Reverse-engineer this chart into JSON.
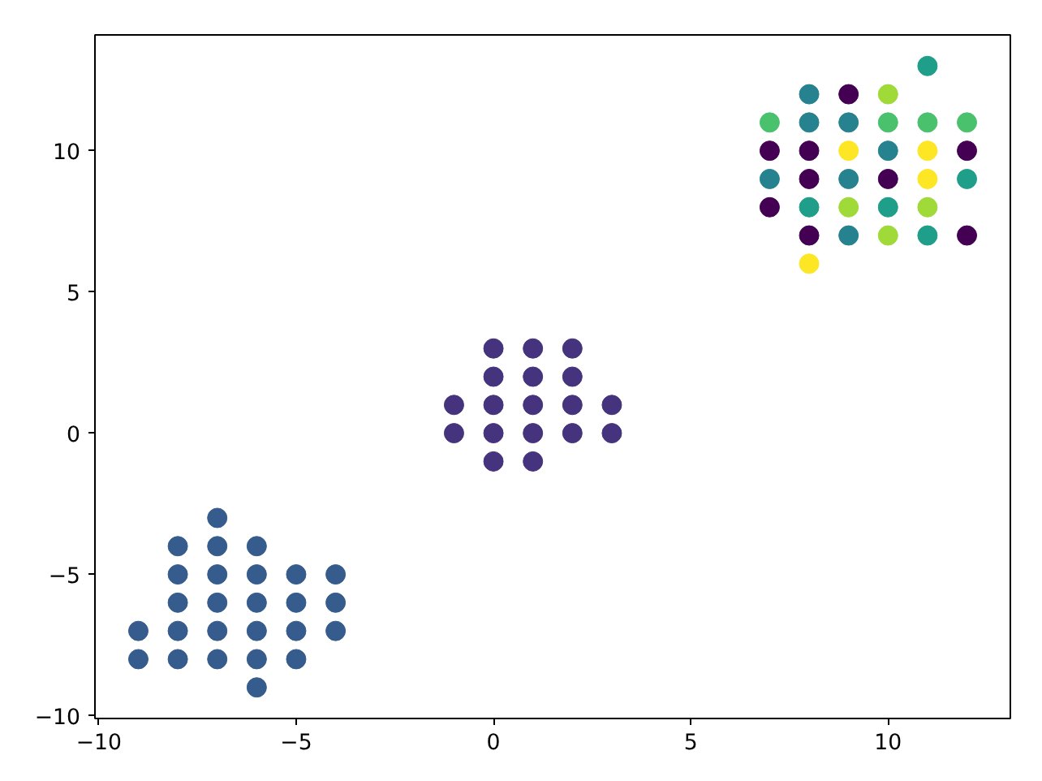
{
  "chart_data": {
    "type": "scatter",
    "marker": "circle",
    "grid": false,
    "xlim": [
      -10.1,
      13.1
    ],
    "ylim": [
      -10.1,
      14.1
    ],
    "xticks": [
      {
        "value": -10,
        "label": "−10"
      },
      {
        "value": -5,
        "label": "−5"
      },
      0,
      5,
      10
    ],
    "yticks": [
      {
        "value": -10,
        "label": "−10"
      },
      {
        "value": -5,
        "label": "−5"
      },
      0,
      5,
      10
    ],
    "series": [
      {
        "x": [
          11,
          8,
          9,
          10,
          7,
          8,
          9,
          10,
          11,
          12,
          7,
          8,
          9,
          10,
          11,
          12,
          7,
          8,
          9,
          10,
          11,
          12,
          7,
          8,
          9,
          10,
          11,
          8,
          9,
          10,
          11,
          12,
          8
        ],
        "values": [
          13,
          12,
          12,
          12,
          11,
          11,
          11,
          11,
          11,
          11,
          10,
          10,
          10,
          10,
          10,
          10,
          9,
          9,
          9,
          9,
          9,
          9,
          8,
          8,
          8,
          8,
          8,
          7,
          7,
          7,
          7,
          7,
          6
        ],
        "colors": [
          "#1f9e89",
          "#26828e",
          "#440154",
          "#a0da39",
          "#4ac16d",
          "#26828e",
          "#26828e",
          "#4ac16d",
          "#4ac16d",
          "#4ac16d",
          "#440154",
          "#440154",
          "#fde725",
          "#26828e",
          "#fde725",
          "#440154",
          "#26828e",
          "#440154",
          "#26828e",
          "#440154",
          "#fde725",
          "#1f9e89",
          "#440154",
          "#1f9e89",
          "#a0da39",
          "#1f9e89",
          "#a0da39",
          "#440154",
          "#26828e",
          "#a0da39",
          "#1f9e89",
          "#440154",
          "#fde725"
        ]
      },
      {
        "x": [
          0,
          1,
          2,
          0,
          1,
          2,
          -1,
          0,
          1,
          2,
          3,
          -1,
          0,
          1,
          2,
          3,
          0,
          1
        ],
        "values": [
          3,
          3,
          3,
          2,
          2,
          2,
          1,
          1,
          1,
          1,
          1,
          0,
          0,
          0,
          0,
          0,
          -1,
          -1
        ],
        "color": "#46337e"
      },
      {
        "x": [
          -7,
          -8,
          -7,
          -6,
          -8,
          -7,
          -6,
          -5,
          -4,
          -8,
          -7,
          -6,
          -5,
          -4,
          -9,
          -8,
          -7,
          -6,
          -5,
          -4,
          -9,
          -8,
          -7,
          -6,
          -5,
          -6
        ],
        "values": [
          -3,
          -4,
          -4,
          -4,
          -5,
          -5,
          -5,
          -5,
          -5,
          -6,
          -6,
          -6,
          -6,
          -6,
          -7,
          -7,
          -7,
          -7,
          -7,
          -7,
          -8,
          -8,
          -8,
          -8,
          -8,
          -9
        ],
        "color": "#365c8d"
      }
    ]
  }
}
